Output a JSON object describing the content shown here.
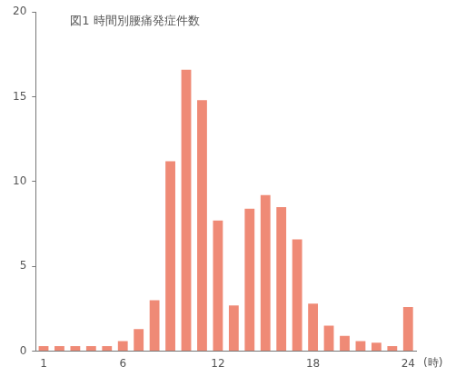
{
  "chart_data": {
    "type": "bar",
    "title": "図1 時間別腰痛発症件数",
    "x_label": "(時)",
    "categories": [
      "1",
      null,
      null,
      null,
      null,
      "6",
      null,
      null,
      null,
      null,
      null,
      "12",
      null,
      null,
      null,
      null,
      null,
      "18",
      null,
      null,
      null,
      null,
      null,
      "24"
    ],
    "values": [
      0.3,
      0.3,
      0.3,
      0.3,
      0.3,
      0.6,
      1.3,
      3.0,
      11.2,
      16.6,
      14.8,
      7.7,
      2.7,
      8.4,
      9.2,
      8.5,
      6.6,
      2.8,
      1.5,
      0.9,
      0.6,
      0.5,
      0.3,
      2.6
    ],
    "color": "#ef8a76",
    "ylim": [
      0,
      20
    ],
    "yticks": [
      0,
      5,
      10,
      15,
      20
    ],
    "grid": false
  }
}
